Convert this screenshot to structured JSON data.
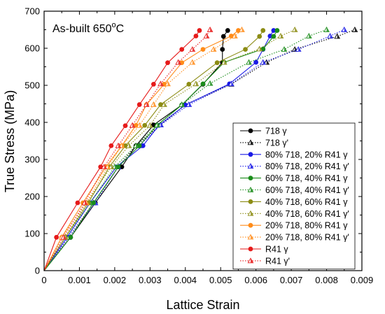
{
  "chart_data": {
    "type": "line",
    "annotation": "As-built 650",
    "annotation_sup": "o",
    "annotation_suffix": "C",
    "xlabel": "Lattice Strain",
    "ylabel": "True Stress (MPa)",
    "xlim": [
      0,
      0.009
    ],
    "ylim": [
      0,
      700
    ],
    "xticks": [
      "0",
      "0.001",
      "0.002",
      "0.003",
      "0.004",
      "0.005",
      "0.006",
      "0.007",
      "0.008",
      "0.009"
    ],
    "yticks": [
      "0",
      "100",
      "200",
      "300",
      "400",
      "500",
      "600",
      "700"
    ],
    "grid": false,
    "legend_position": "lower-right",
    "series": [
      {
        "name": "718 γ",
        "color": "#000000",
        "dash": "solid",
        "marker": "circle",
        "points": [
          [
            0,
            0
          ],
          [
            0.00075,
            90
          ],
          [
            0.00145,
            183
          ],
          [
            0.0022,
            280
          ],
          [
            0.0026,
            337
          ],
          [
            0.0031,
            393
          ],
          [
            0.0039,
            447
          ],
          [
            0.0045,
            503
          ],
          [
            0.00505,
            562
          ],
          [
            0.00505,
            597
          ],
          [
            0.00508,
            632
          ],
          [
            0.0052,
            648
          ]
        ]
      },
      {
        "name": "718 γ'",
        "color": "#000000",
        "dash": "dotted",
        "marker": "triangle",
        "points": [
          [
            0,
            0
          ],
          [
            0.0007,
            90
          ],
          [
            0.0014,
            183
          ],
          [
            0.0021,
            280
          ],
          [
            0.0026,
            337
          ],
          [
            0.0033,
            393
          ],
          [
            0.004,
            448
          ],
          [
            0.0053,
            503
          ],
          [
            0.0063,
            562
          ],
          [
            0.0071,
            597
          ],
          [
            0.0083,
            632
          ],
          [
            0.0088,
            650
          ]
        ]
      },
      {
        "name": "80% 718, 20% R41 γ",
        "color": "#1a1ae6",
        "dash": "solid",
        "marker": "circle",
        "points": [
          [
            0,
            0
          ],
          [
            0.00065,
            90
          ],
          [
            0.0013,
            183
          ],
          [
            0.00205,
            280
          ],
          [
            0.0028,
            337
          ],
          [
            0.00325,
            392
          ],
          [
            0.004,
            447
          ],
          [
            0.00525,
            504
          ],
          [
            0.006,
            562
          ],
          [
            0.0062,
            597
          ],
          [
            0.0064,
            633
          ],
          [
            0.0065,
            648
          ]
        ]
      },
      {
        "name": "80% 718, 20% R41 γ'",
        "color": "#1a1ae6",
        "dash": "dotted",
        "marker": "triangle",
        "points": [
          [
            0,
            0
          ],
          [
            0.0007,
            90
          ],
          [
            0.00145,
            183
          ],
          [
            0.0021,
            280
          ],
          [
            0.0027,
            337
          ],
          [
            0.0033,
            393
          ],
          [
            0.0041,
            448
          ],
          [
            0.0053,
            504
          ],
          [
            0.0062,
            562
          ],
          [
            0.0072,
            597
          ],
          [
            0.0081,
            633
          ],
          [
            0.0085,
            650
          ]
        ]
      },
      {
        "name": "60% 718, 40% R41 γ",
        "color": "#1a8c1a",
        "dash": "solid",
        "marker": "circle",
        "points": [
          [
            0,
            0
          ],
          [
            0.00075,
            90
          ],
          [
            0.0014,
            183
          ],
          [
            0.0021,
            280
          ],
          [
            0.0027,
            337
          ],
          [
            0.0032,
            392
          ],
          [
            0.0039,
            447
          ],
          [
            0.0045,
            504
          ],
          [
            0.0051,
            562
          ],
          [
            0.0062,
            598
          ],
          [
            0.0065,
            632
          ],
          [
            0.0066,
            648
          ]
        ]
      },
      {
        "name": "60% 718, 40% R41 γ'",
        "color": "#1a8c1a",
        "dash": "dotted",
        "marker": "triangle",
        "points": [
          [
            0,
            0
          ],
          [
            0.0006,
            90
          ],
          [
            0.0013,
            183
          ],
          [
            0.002,
            280
          ],
          [
            0.0026,
            337
          ],
          [
            0.0032,
            393
          ],
          [
            0.0039,
            448
          ],
          [
            0.0047,
            505
          ],
          [
            0.0058,
            562
          ],
          [
            0.0068,
            597
          ],
          [
            0.0075,
            633
          ],
          [
            0.008,
            650
          ]
        ]
      },
      {
        "name": "40% 718, 60% R41 γ",
        "color": "#8c8c14",
        "dash": "solid",
        "marker": "circle",
        "points": [
          [
            0,
            0
          ],
          [
            0.0006,
            90
          ],
          [
            0.00125,
            183
          ],
          [
            0.00185,
            280
          ],
          [
            0.0023,
            337
          ],
          [
            0.00285,
            392
          ],
          [
            0.0033,
            448
          ],
          [
            0.0041,
            503
          ],
          [
            0.0049,
            561
          ],
          [
            0.0057,
            597
          ],
          [
            0.0061,
            632
          ],
          [
            0.0062,
            648
          ]
        ]
      },
      {
        "name": "40% 718, 60% R41 γ'",
        "color": "#8c8c14",
        "dash": "dotted",
        "marker": "triangle",
        "points": [
          [
            0,
            0
          ],
          [
            0.0006,
            90
          ],
          [
            0.0012,
            183
          ],
          [
            0.0019,
            280
          ],
          [
            0.0024,
            337
          ],
          [
            0.003,
            392
          ],
          [
            0.0034,
            448
          ],
          [
            0.0043,
            504
          ],
          [
            0.0051,
            562
          ],
          [
            0.0061,
            598
          ],
          [
            0.0067,
            633
          ],
          [
            0.0071,
            650
          ]
        ]
      },
      {
        "name": "20% 718, 80% R41 γ",
        "color": "#ff8c1a",
        "dash": "solid",
        "marker": "circle",
        "points": [
          [
            0,
            0
          ],
          [
            0.0005,
            90
          ],
          [
            0.0011,
            183
          ],
          [
            0.00175,
            280
          ],
          [
            0.0022,
            337
          ],
          [
            0.0026,
            392
          ],
          [
            0.0029,
            448
          ],
          [
            0.0034,
            503
          ],
          [
            0.0039,
            561
          ],
          [
            0.0045,
            597
          ],
          [
            0.0053,
            633
          ],
          [
            0.0055,
            648
          ]
        ]
      },
      {
        "name": "20% 718, 80% R41 γ'",
        "color": "#ff8c1a",
        "dash": "dotted",
        "marker": "triangle",
        "points": [
          [
            0,
            0
          ],
          [
            0.0005,
            90
          ],
          [
            0.0012,
            183
          ],
          [
            0.0018,
            280
          ],
          [
            0.0022,
            337
          ],
          [
            0.0027,
            392
          ],
          [
            0.0031,
            448
          ],
          [
            0.0035,
            504
          ],
          [
            0.0042,
            562
          ],
          [
            0.0048,
            597
          ],
          [
            0.0054,
            633
          ],
          [
            0.0056,
            650
          ]
        ]
      },
      {
        "name": "R41 γ",
        "color": "#e61a1a",
        "dash": "solid",
        "marker": "circle",
        "points": [
          [
            0,
            0
          ],
          [
            0.00035,
            90
          ],
          [
            0.00095,
            183
          ],
          [
            0.0016,
            280
          ],
          [
            0.0019,
            337
          ],
          [
            0.0023,
            391
          ],
          [
            0.0027,
            448
          ],
          [
            0.0031,
            503
          ],
          [
            0.0035,
            561
          ],
          [
            0.0039,
            597
          ],
          [
            0.0043,
            633
          ],
          [
            0.0044,
            648
          ]
        ]
      },
      {
        "name": "R41 γ'",
        "color": "#e61a1a",
        "dash": "dotted",
        "marker": "triangle",
        "points": [
          [
            0,
            0
          ],
          [
            0.00055,
            90
          ],
          [
            0.00115,
            183
          ],
          [
            0.0017,
            280
          ],
          [
            0.0021,
            337
          ],
          [
            0.0025,
            392
          ],
          [
            0.0029,
            448
          ],
          [
            0.0033,
            504
          ],
          [
            0.0038,
            562
          ],
          [
            0.0042,
            597
          ],
          [
            0.0046,
            633
          ],
          [
            0.0047,
            650
          ]
        ]
      }
    ]
  }
}
